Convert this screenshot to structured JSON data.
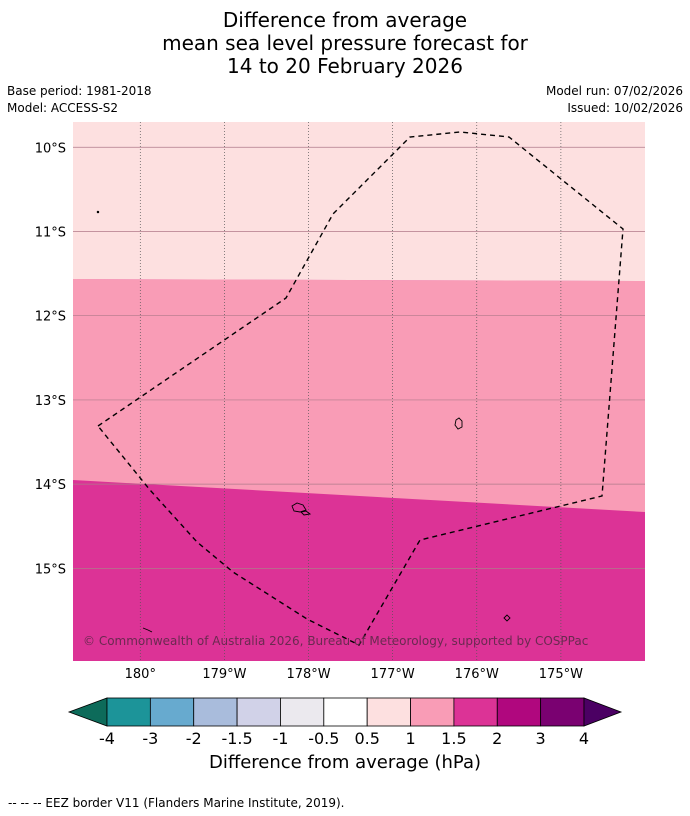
{
  "title": {
    "line1": "Difference from average",
    "line2": "mean sea level pressure forecast for",
    "line3": "14 to 20 February 2026"
  },
  "meta": {
    "base_period": "Base period: 1981-2018",
    "model": "Model: ACCESS-S2",
    "model_run": "Model run: 07/02/2026",
    "issued": "Issued: 10/02/2026"
  },
  "map": {
    "lon_range": [
      179.2,
      -174.0
    ],
    "lat_range": [
      -9.7,
      -16.1
    ],
    "lat_ticks": [
      {
        "value": -10,
        "label": "10°S"
      },
      {
        "value": -11,
        "label": "11°S"
      },
      {
        "value": -12,
        "label": "12°S"
      },
      {
        "value": -13,
        "label": "13°S"
      },
      {
        "value": -14,
        "label": "14°S"
      },
      {
        "value": -15,
        "label": "15°S"
      }
    ],
    "lon_ticks": [
      {
        "value": 180,
        "label": "180°"
      },
      {
        "value": -179,
        "label": "179°W"
      },
      {
        "value": -178,
        "label": "178°W"
      },
      {
        "value": -177,
        "label": "177°W"
      },
      {
        "value": -176,
        "label": "176°W"
      },
      {
        "value": -175,
        "label": "175°W"
      }
    ],
    "bands": [
      {
        "range": "0.5 to 1",
        "color": "#fde0e0"
      },
      {
        "range": "1 to 1.5",
        "color": "#f99cb6"
      },
      {
        "range": "1.5 to 2",
        "color": "#dc3396"
      }
    ],
    "copyright": "© Commonwealth of Australia 2026, Bureau of Meteorology, supported by COSPPac"
  },
  "colorbar": {
    "labels": [
      "-4",
      "-3",
      "-2",
      "-1.5",
      "-1",
      "-0.5",
      "0.5",
      "1",
      "1.5",
      "2",
      "3",
      "4"
    ],
    "colors": [
      "#0d6b5a",
      "#1c9499",
      "#67aacf",
      "#a9bcdc",
      "#d1d2e8",
      "#ebe9ee",
      "#ffffff",
      "#fde0e0",
      "#f99cb6",
      "#dc3396",
      "#b0077e",
      "#7a0171",
      "#4b0063"
    ],
    "label": "Difference from average (hPa)"
  },
  "footer": "--  --  -- EEZ border V11 (Flanders Marine Institute, 2019)."
}
